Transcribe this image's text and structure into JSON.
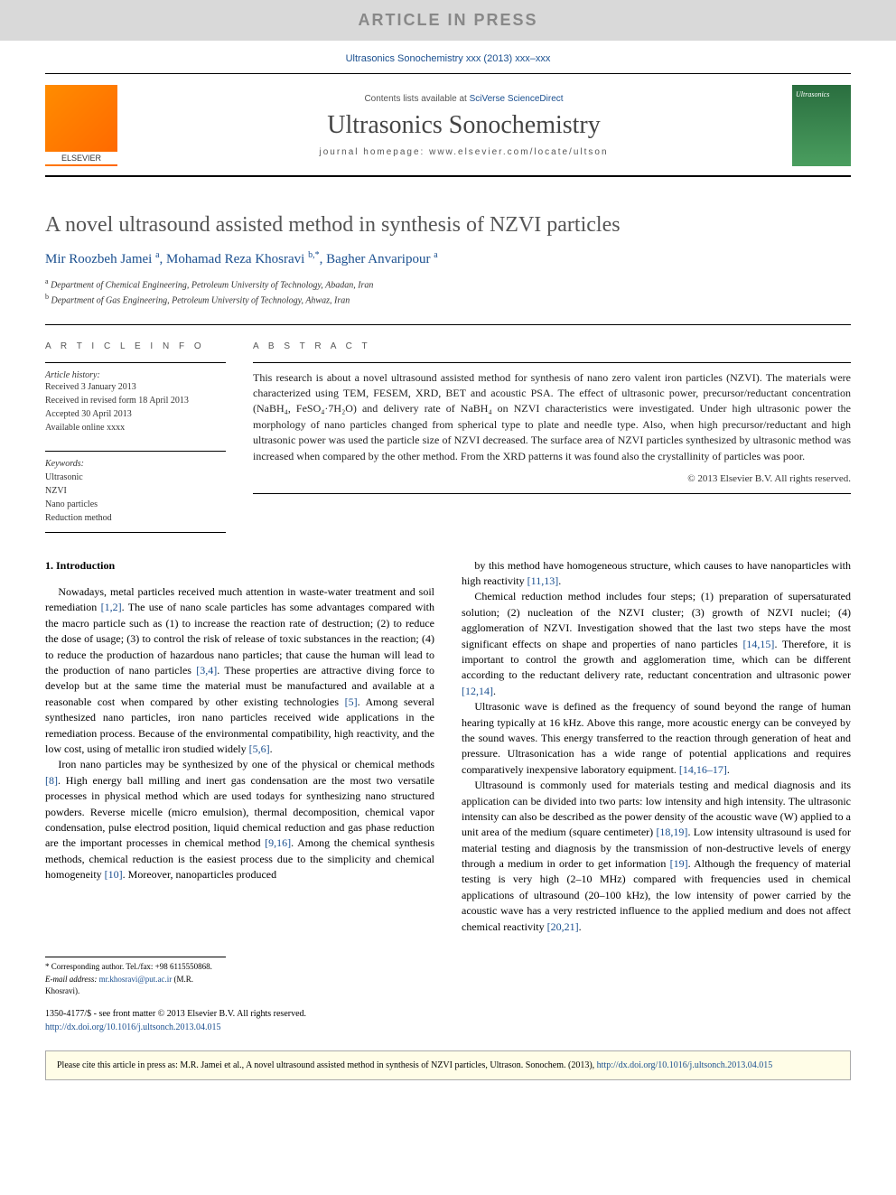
{
  "banner": {
    "text": "ARTICLE IN PRESS"
  },
  "journal_ref": "Ultrasonics Sonochemistry xxx (2013) xxx–xxx",
  "masthead": {
    "contents_prefix": "Contents lists available at ",
    "contents_link": "SciVerse ScienceDirect",
    "journal_title": "Ultrasonics Sonochemistry",
    "homepage_prefix": "journal homepage: ",
    "homepage_url": "www.elsevier.com/locate/ultson",
    "publisher": "ELSEVIER"
  },
  "article": {
    "title": "A novel ultrasound assisted method in synthesis of NZVI particles",
    "authors_html": "Mir Roozbeh Jamei <sup>a</sup>, Mohamad Reza Khosravi <sup>b,*</sup>, Bagher Anvaripour <sup>a</sup>",
    "affiliations": [
      {
        "sup": "a",
        "text": "Department of Chemical Engineering, Petroleum University of Technology, Abadan, Iran"
      },
      {
        "sup": "b",
        "text": "Department of Gas Engineering, Petroleum University of Technology, Ahwaz, Iran"
      }
    ]
  },
  "info": {
    "heading": "A R T I C L E   I N F O",
    "history_label": "Article history:",
    "history": [
      "Received 3 January 2013",
      "Received in revised form 18 April 2013",
      "Accepted 30 April 2013",
      "Available online xxxx"
    ],
    "keywords_label": "Keywords:",
    "keywords": [
      "Ultrasonic",
      "NZVI",
      "Nano particles",
      "Reduction method"
    ]
  },
  "abstract": {
    "heading": "A B S T R A C T",
    "text": "This research is about a novel ultrasound assisted method for synthesis of nano zero valent iron particles (NZVI). The materials were characterized using TEM, FESEM, XRD, BET and acoustic PSA. The effect of ultrasonic power, precursor/reductant concentration (NaBH₄, FeSO₄·7H₂O) and delivery rate of NaBH₄ on NZVI characteristics were investigated. Under high ultrasonic power the morphology of nano particles changed from spherical type to plate and needle type. Also, when high precursor/reductant and high ultrasonic power was used the particle size of NZVI decreased. The surface area of NZVI particles synthesized by ultrasonic method was increased when compared by the other method. From the XRD patterns it was found also the crystallinity of particles was poor.",
    "copyright": "© 2013 Elsevier B.V. All rights reserved."
  },
  "body": {
    "section_heading": "1. Introduction",
    "left_paras": [
      "Nowadays, metal particles received much attention in waste-water treatment and soil remediation [1,2]. The use of nano scale particles has some advantages compared with the macro particle such as (1) to increase the reaction rate of destruction; (2) to reduce the dose of usage; (3) to control the risk of release of toxic substances in the reaction; (4) to reduce the production of hazardous nano particles; that cause the human will lead to the production of nano particles [3,4]. These properties are attractive diving force to develop but at the same time the material must be manufactured and available at a reasonable cost when compared by other existing technologies [5]. Among several synthesized nano particles, iron nano particles received wide applications in the remediation process. Because of the environmental compatibility, high reactivity, and the low cost, using of metallic iron studied widely [5,6].",
      "Iron nano particles may be synthesized by one of the physical or chemical methods [8]. High energy ball milling and inert gas condensation are the most two versatile processes in physical method which are used todays for synthesizing nano structured powders. Reverse micelle (micro emulsion), thermal decomposition, chemical vapor condensation, pulse electrod position, liquid chemical reduction and gas phase reduction are the important processes in chemical method [9,16]. Among the chemical synthesis methods, chemical reduction is the easiest process due to the simplicity and chemical homogeneity [10]. Moreover, nanoparticles produced"
    ],
    "right_paras": [
      "by this method have homogeneous structure, which causes to have nanoparticles with high reactivity [11,13].",
      "Chemical reduction method includes four steps; (1) preparation of supersaturated solution; (2) nucleation of the NZVI cluster; (3) growth of NZVI nuclei; (4) agglomeration of NZVI. Investigation showed that the last two steps have the most significant effects on shape and properties of nano particles [14,15]. Therefore, it is important to control the growth and agglomeration time, which can be different according to the reductant delivery rate, reductant concentration and ultrasonic power [12,14].",
      "Ultrasonic wave is defined as the frequency of sound beyond the range of human hearing typically at 16 kHz. Above this range, more acoustic energy can be conveyed by the sound waves. This energy transferred to the reaction through generation of heat and pressure. Ultrasonication has a wide range of potential applications and requires comparatively inexpensive laboratory equipment. [14,16–17].",
      "Ultrasound is commonly used for materials testing and medical diagnosis and its application can be divided into two parts: low intensity and high intensity. The ultrasonic intensity can also be described as the power density of the acoustic wave (W) applied to a unit area of the medium (square centimeter) [18,19]. Low intensity ultrasound is used for material testing and diagnosis by the transmission of non-destructive levels of energy through a medium in order to get information [19]. Although the frequency of material testing is very high (2–10 MHz) compared with frequencies used in chemical applications of ultrasound (20–100 kHz), the low intensity of power carried by the acoustic wave has a very restricted influence to the applied medium and does not affect chemical reactivity [20,21]."
    ],
    "left_refs": [
      "[1,2]",
      "[3,4]",
      "[5]",
      "[5,6]",
      "[8]",
      "[9,16]",
      "[10]"
    ],
    "right_refs": [
      "[11,13]",
      "[14,15]",
      "[12,14]",
      "[14,16–17]",
      "[18,19]",
      "[19]",
      "[20,21]"
    ]
  },
  "corresponding": {
    "label": "* Corresponding author. Tel./fax: +98 6115550868.",
    "email_label": "E-mail address:",
    "email": "mr.khosravi@put.ac.ir",
    "email_name": "(M.R. Khosravi)."
  },
  "footer": {
    "line1": "1350-4177/$ - see front matter © 2013 Elsevier B.V. All rights reserved.",
    "doi": "http://dx.doi.org/10.1016/j.ultsonch.2013.04.015"
  },
  "cite_box": {
    "prefix": "Please cite this article in press as: M.R. Jamei et al., A novel ultrasound assisted method in synthesis of NZVI particles, Ultrason. Sonochem. (2013), ",
    "link": "http://dx.doi.org/10.1016/j.ultsonch.2013.04.015"
  },
  "colors": {
    "banner_bg": "#d9d9d9",
    "banner_text": "#888888",
    "link": "#1a4f8f",
    "elsevier_orange": "#ff7a00",
    "cover_green": "#2a6e3f",
    "cite_bg": "#fffde7"
  },
  "typography": {
    "body_font": "Georgia, serif",
    "sans_font": "Arial, sans-serif",
    "title_size_pt": 24,
    "journal_title_size_pt": 28,
    "body_size_pt": 12,
    "small_size_pt": 10
  }
}
